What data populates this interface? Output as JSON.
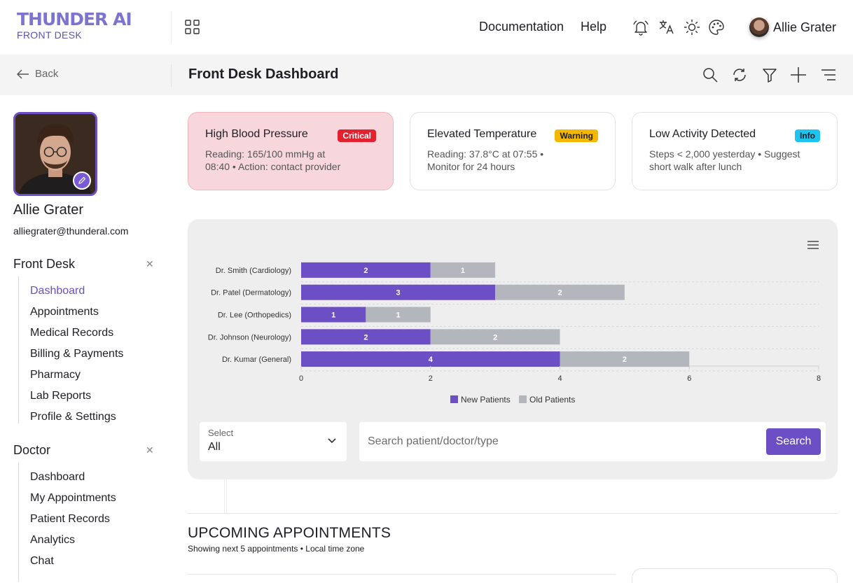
{
  "app": {
    "logo_main": "THUNDER AI",
    "logo_sub": "FRONT DESK"
  },
  "topnav": {
    "documentation": "Documentation",
    "help": "Help",
    "user_name": "Allie Grater"
  },
  "subheader": {
    "back_label": "Back",
    "title": "Front Desk Dashboard"
  },
  "profile": {
    "name": "Allie Grater",
    "email": "alliegrater@thunderal.com"
  },
  "sidebar": {
    "front_desk": {
      "heading": "Front Desk",
      "items": [
        "Dashboard",
        "Appointments",
        "Medical Records",
        "Billing & Payments",
        "Pharmacy",
        "Lab Reports",
        "Profile & Settings"
      ]
    },
    "doctor": {
      "heading": "Doctor",
      "items": [
        "Dashboard",
        "My Appointments",
        "Patient Records",
        "Analytics",
        "Chat"
      ]
    }
  },
  "alerts": [
    {
      "title": "High Blood Pressure",
      "badge": "Critical",
      "text": "Reading: 165/100 mmHg at 08:40 • Action: contact provider"
    },
    {
      "title": "Elevated Temperature",
      "badge": "Warning",
      "text": "Reading: 37.8°C at 07:55 • Monitor for 24 hours"
    },
    {
      "title": "Low Activity Detected",
      "badge": "Info",
      "text": "Steps < 2,000 yesterday • Suggest short walk after lunch"
    }
  ],
  "colors": {
    "accent": "#6c4fc4",
    "new_patients": "#6c4fc4",
    "old_patients": "#b3b7bd",
    "critical": "#e3212f",
    "warning": "#f5b800",
    "info": "#1cc4ef"
  },
  "chart_data": {
    "type": "bar",
    "orientation": "horizontal",
    "stacked": true,
    "categories": [
      "Dr. Smith (Cardiology)",
      "Dr. Patel (Dermatology)",
      "Dr. Lee (Orthopedics)",
      "Dr. Johnson (Neurology)",
      "Dr. Kumar (General)"
    ],
    "series": [
      {
        "name": "New Patients",
        "values": [
          2,
          3,
          1,
          2,
          4
        ]
      },
      {
        "name": "Old Patients",
        "values": [
          1,
          2,
          1,
          2,
          2
        ]
      }
    ],
    "xlim": [
      0,
      8
    ],
    "xticks": [
      0,
      2,
      4,
      6,
      8
    ],
    "grid": true,
    "legend": "bottom-center",
    "title": "",
    "xlabel": "",
    "ylabel": ""
  },
  "filters": {
    "select_label": "Select",
    "select_value": "All",
    "search_placeholder": "Search patient/doctor/type",
    "search_button": "Search"
  },
  "appointments": {
    "title": "UPCOMING APPOINTMENTS",
    "subtitle": "Showing next 5 appointments • Local time zone"
  }
}
